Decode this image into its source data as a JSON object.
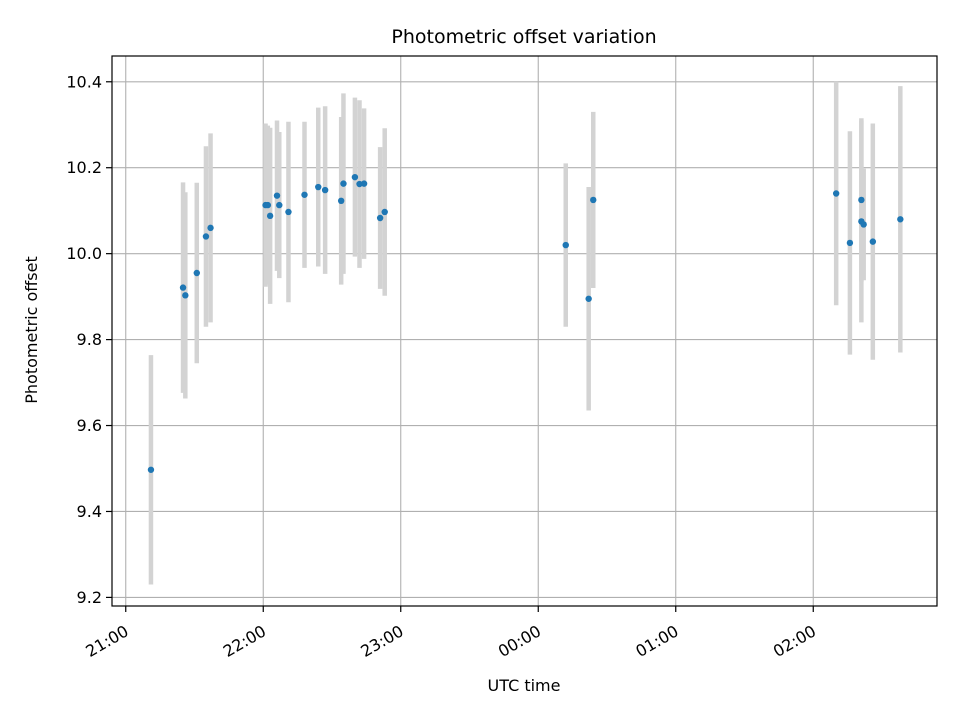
{
  "chart_data": {
    "type": "scatter",
    "title": "Photometric offset variation",
    "xlabel": "UTC time",
    "ylabel": "Photometric offset",
    "x_axis": {
      "type": "time",
      "ticks": [
        "21:00",
        "22:00",
        "23:00",
        "00:00",
        "01:00",
        "02:00"
      ],
      "tick_hours": [
        0,
        1,
        2,
        3,
        4,
        5
      ],
      "range_hours": [
        -0.1,
        5.9
      ]
    },
    "y_axis": {
      "ticks": [
        "9.2",
        "9.4",
        "9.6",
        "9.8",
        "10.0",
        "10.2",
        "10.4"
      ],
      "range": [
        9.18,
        10.46
      ]
    },
    "grid": true,
    "colors": {
      "marker": "#1f77b4",
      "errorbar": "#d3d3d3",
      "grid": "#b0b0b0"
    },
    "series": [
      {
        "points": [
          {
            "time": "21:11",
            "y": 9.497,
            "err": 0.267
          },
          {
            "time": "21:25",
            "y": 9.921,
            "err": 0.245
          },
          {
            "time": "21:26",
            "y": 9.903,
            "err": 0.24
          },
          {
            "time": "21:31",
            "y": 9.955,
            "err": 0.21
          },
          {
            "time": "21:35",
            "y": 10.04,
            "err": 0.21
          },
          {
            "time": "21:37",
            "y": 10.06,
            "err": 0.22
          },
          {
            "time": "22:01",
            "y": 10.113,
            "err": 0.19
          },
          {
            "time": "22:02",
            "y": 10.113,
            "err": 0.185
          },
          {
            "time": "22:03",
            "y": 10.088,
            "err": 0.205
          },
          {
            "time": "22:06",
            "y": 10.135,
            "err": 0.175
          },
          {
            "time": "22:07",
            "y": 10.113,
            "err": 0.17
          },
          {
            "time": "22:11",
            "y": 10.097,
            "err": 0.21
          },
          {
            "time": "22:18",
            "y": 10.137,
            "err": 0.17
          },
          {
            "time": "22:24",
            "y": 10.155,
            "err": 0.185
          },
          {
            "time": "22:27",
            "y": 10.148,
            "err": 0.195
          },
          {
            "time": "22:34",
            "y": 10.123,
            "err": 0.195
          },
          {
            "time": "22:35",
            "y": 10.163,
            "err": 0.21
          },
          {
            "time": "22:40",
            "y": 10.178,
            "err": 0.185
          },
          {
            "time": "22:42",
            "y": 10.162,
            "err": 0.195
          },
          {
            "time": "22:44",
            "y": 10.163,
            "err": 0.175
          },
          {
            "time": "22:51",
            "y": 10.083,
            "err": 0.165
          },
          {
            "time": "22:53",
            "y": 10.097,
            "err": 0.195
          },
          {
            "time": "00:12",
            "y": 10.02,
            "err": 0.19
          },
          {
            "time": "00:22",
            "y": 9.895,
            "err": 0.26
          },
          {
            "time": "00:24",
            "y": 10.125,
            "err": 0.205
          },
          {
            "time": "02:10",
            "y": 10.14,
            "err": 0.26
          },
          {
            "time": "02:16",
            "y": 10.025,
            "err": 0.26
          },
          {
            "time": "02:21",
            "y": 10.125,
            "err": 0.19
          },
          {
            "time": "02:21",
            "y": 10.075,
            "err": 0.235
          },
          {
            "time": "02:22",
            "y": 10.068,
            "err": 0.13
          },
          {
            "time": "02:26",
            "y": 10.028,
            "err": 0.275
          },
          {
            "time": "02:38",
            "y": 10.08,
            "err": 0.31
          }
        ]
      }
    ]
  }
}
